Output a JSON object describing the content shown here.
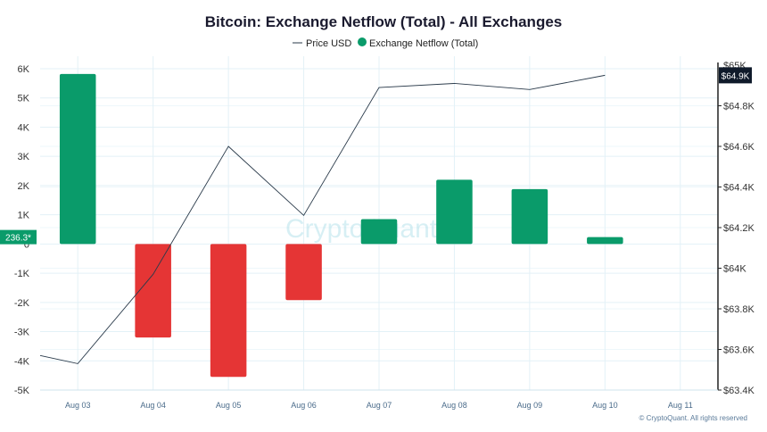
{
  "chart_data": {
    "type": "bar",
    "title": "Bitcoin: Exchange Netflow (Total) - All Exchanges",
    "categories": [
      "Aug 03",
      "Aug 04",
      "Aug 05",
      "Aug 06",
      "Aug 07",
      "Aug 08",
      "Aug 09",
      "Aug 10",
      "Aug 11"
    ],
    "series": [
      {
        "name": "Exchange Netflow (Total)",
        "kind": "bar",
        "axis": "left",
        "values": [
          5820,
          -3200,
          -4550,
          -1920,
          850,
          2200,
          1880,
          236.3,
          null
        ]
      },
      {
        "name": "Price USD",
        "kind": "line",
        "axis": "right",
        "values": [
          63530,
          63970,
          64600,
          64260,
          64890,
          64910,
          64880,
          64950,
          null
        ]
      }
    ],
    "line_start_value": 63570,
    "ylim_left": [
      -5000,
      6000
    ],
    "ylim_right": [
      63400,
      65000
    ],
    "left_ticks": [
      "-5K",
      "-4K",
      "-3K",
      "-2K",
      "-1K",
      "0",
      "1K",
      "2K",
      "3K",
      "4K",
      "5K",
      "6K"
    ],
    "left_tick_values": [
      -5000,
      -4000,
      -3000,
      -2000,
      -1000,
      0,
      1000,
      2000,
      3000,
      4000,
      5000,
      6000
    ],
    "right_ticks": [
      "$63.4K",
      "$63.6K",
      "$63.8K",
      "$64K",
      "$64.2K",
      "$64.4K",
      "$64.6K",
      "$64.8K"
    ],
    "right_tick_values": [
      63400,
      63600,
      63800,
      64000,
      64200,
      64400,
      64600,
      64800
    ],
    "right_top_tick": "$65K",
    "positive_color": "#0a9b6a",
    "negative_color": "#e53535",
    "line_color": "#2a3a4a",
    "grid": true,
    "legend_position": "top-center",
    "last_netflow_label": "236.3*",
    "last_price_label": "$64.9K",
    "watermark": "CryptoQuant",
    "credit": "© CryptoQuant. All rights reserved"
  }
}
